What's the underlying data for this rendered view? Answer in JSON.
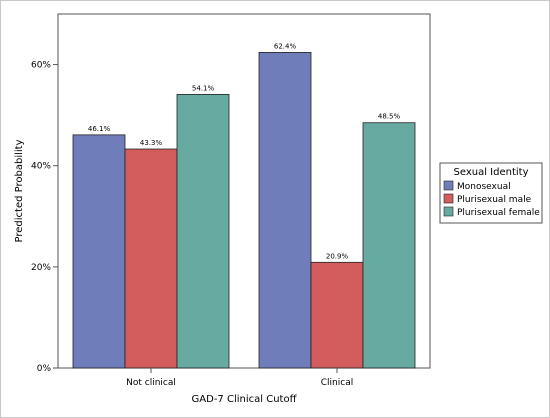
{
  "chart_data": {
    "type": "bar",
    "title": "",
    "xlabel": "GAD-7 Clinical Cutoff",
    "ylabel": "Predicted Probability",
    "categories": [
      "Not clinical",
      "Clinical"
    ],
    "ylim": [
      0,
      0.7
    ],
    "yticks": [
      0,
      0.2,
      0.4,
      0.6
    ],
    "ytick_labels": [
      "0%",
      "20%",
      "40%",
      "60%"
    ],
    "grid": false,
    "legend": {
      "title": "Sexual Identity",
      "position": "right"
    },
    "series": [
      {
        "name": "Monosexual",
        "color": "#6f7dba",
        "values": [
          0.461,
          0.624
        ],
        "labels": [
          "46.1%",
          "62.4%"
        ]
      },
      {
        "name": "Plurisexual male",
        "color": "#d35c5c",
        "values": [
          0.433,
          0.209
        ],
        "labels": [
          "43.3%",
          "20.9%"
        ]
      },
      {
        "name": "Plurisexual female",
        "color": "#66aaa2",
        "values": [
          0.541,
          0.485
        ],
        "labels": [
          "54.1%",
          "48.5%"
        ]
      }
    ]
  }
}
